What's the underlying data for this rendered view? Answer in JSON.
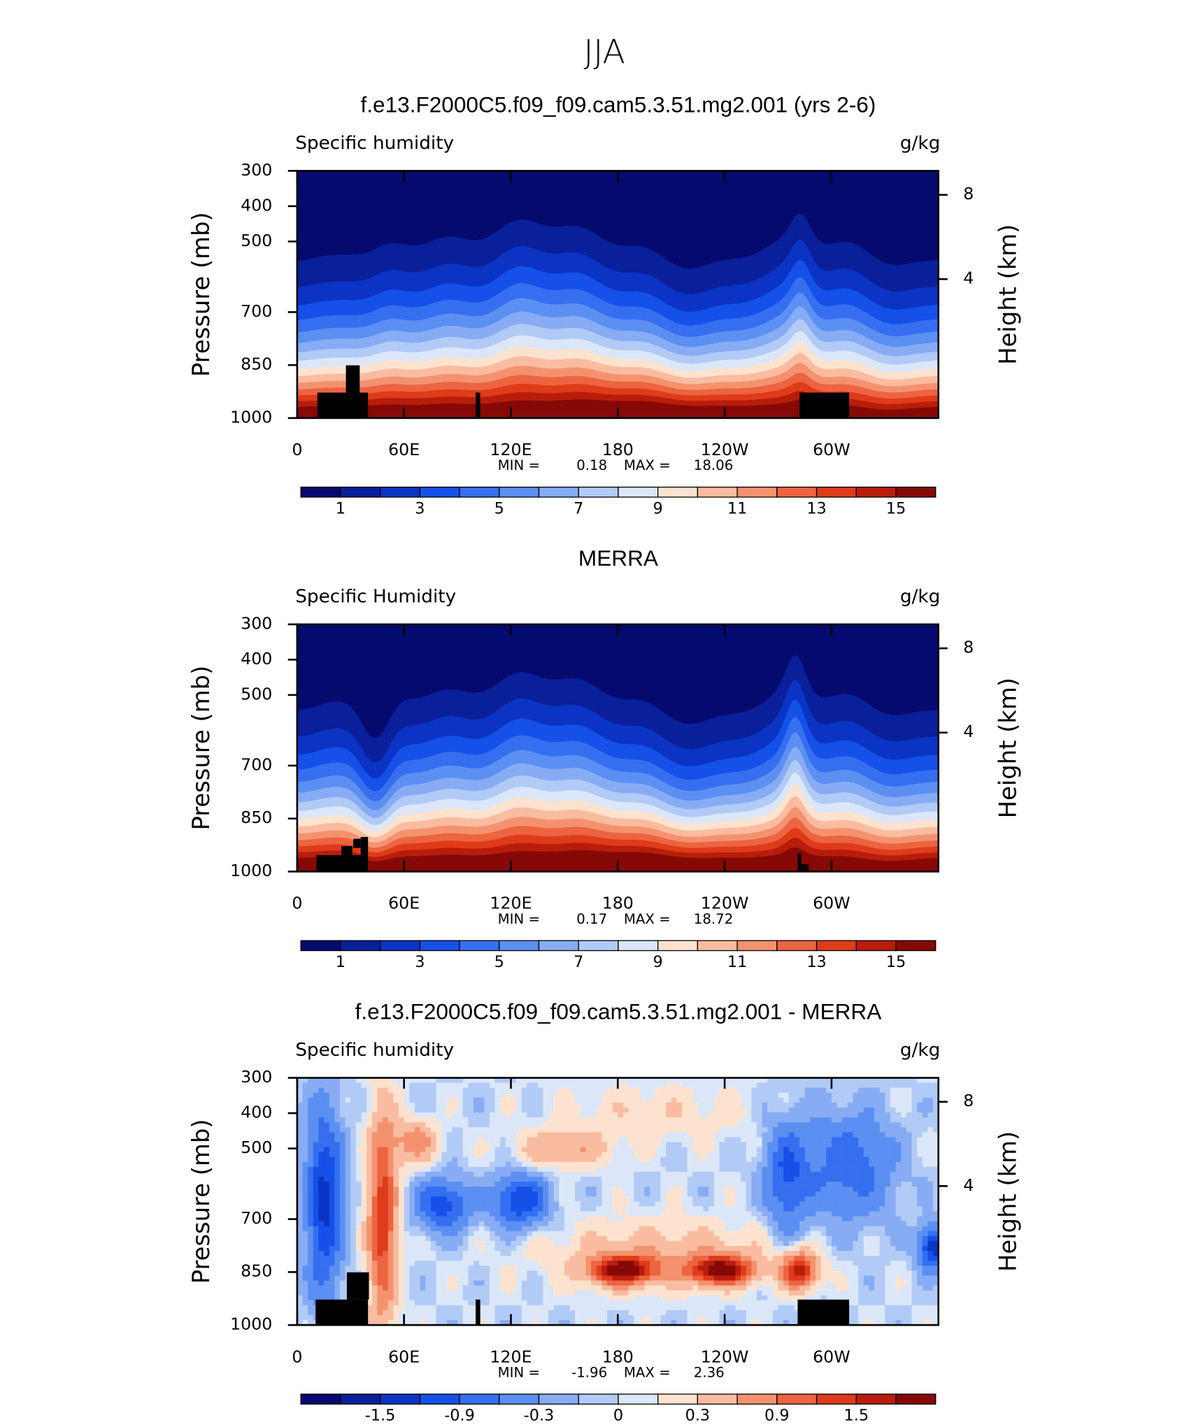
{
  "title": "JJA",
  "chart_data": [
    {
      "type": "contour",
      "panel": "model",
      "title": "f.e13.F2000C5.f09_f09.cam5.3.51.mg2.001 (yrs 2-6)",
      "subtitle": "Specific humidity",
      "units": "g/kg",
      "ylabel": "Pressure (mb)",
      "y2label": "Height (km)",
      "xlim": [
        0,
        360
      ],
      "xticks": [
        0,
        {
          "value": 60,
          "label": "60E"
        },
        {
          "value": 120,
          "label": "120E"
        },
        180,
        {
          "value": 240,
          "label": "120W"
        },
        {
          "value": 300,
          "label": "60W"
        }
      ],
      "ylim": [
        1000,
        300
      ],
      "yticks": [
        300,
        400,
        500,
        700,
        850,
        1000
      ],
      "y2ticks": [
        8,
        4
      ],
      "stats": [
        {
          "label": "MIN =",
          "value": 0.18
        },
        {
          "label": "MAX =",
          "value": 18.06
        }
      ],
      "colorbar": {
        "levels": [
          1,
          2,
          3,
          4,
          5,
          6,
          7,
          8,
          9,
          10,
          11,
          12,
          13,
          14,
          15
        ],
        "ticks": [
          1,
          3,
          5,
          7,
          9,
          11,
          13,
          15
        ],
        "colors": [
          "#050a6e",
          "#0a1f9a",
          "#0b34c4",
          "#1550e8",
          "#356ff0",
          "#5b8ff2",
          "#87acf4",
          "#b2caf6",
          "#dbe7f8",
          "#fde3cf",
          "#f9bca0",
          "#f4926f",
          "#ec6440",
          "#de3b1a",
          "#b81d0b",
          "#860905"
        ]
      }
    },
    {
      "type": "contour",
      "panel": "obs",
      "title": "MERRA",
      "subtitle": "Specific Humidity",
      "units": "g/kg",
      "ylabel": "Pressure (mb)",
      "y2label": "Height (km)",
      "xlim": [
        0,
        360
      ],
      "xticks": [
        0,
        {
          "value": 60,
          "label": "60E"
        },
        {
          "value": 120,
          "label": "120E"
        },
        180,
        {
          "value": 240,
          "label": "120W"
        },
        {
          "value": 300,
          "label": "60W"
        }
      ],
      "ylim": [
        1000,
        300
      ],
      "yticks": [
        300,
        400,
        500,
        700,
        850,
        1000
      ],
      "y2ticks": [
        8,
        4
      ],
      "stats": [
        {
          "label": "MIN =",
          "value": 0.17
        },
        {
          "label": "MAX =",
          "value": 18.72
        }
      ],
      "colorbar": {
        "levels": [
          1,
          2,
          3,
          4,
          5,
          6,
          7,
          8,
          9,
          10,
          11,
          12,
          13,
          14,
          15
        ],
        "ticks": [
          1,
          3,
          5,
          7,
          9,
          11,
          13,
          15
        ],
        "colors": [
          "#050a6e",
          "#0a1f9a",
          "#0b34c4",
          "#1550e8",
          "#356ff0",
          "#5b8ff2",
          "#87acf4",
          "#b2caf6",
          "#dbe7f8",
          "#fde3cf",
          "#f9bca0",
          "#f4926f",
          "#ec6440",
          "#de3b1a",
          "#b81d0b",
          "#860905"
        ]
      }
    },
    {
      "type": "contour",
      "panel": "diff",
      "title": "f.e13.F2000C5.f09_f09.cam5.3.51.mg2.001 - MERRA",
      "subtitle": "Specific humidity",
      "units": "g/kg",
      "ylabel": "Pressure (mb)",
      "y2label": "Height (km)",
      "xlim": [
        0,
        360
      ],
      "xticks": [
        0,
        {
          "value": 60,
          "label": "60E"
        },
        {
          "value": 120,
          "label": "120E"
        },
        180,
        {
          "value": 240,
          "label": "120W"
        },
        {
          "value": 300,
          "label": "60W"
        }
      ],
      "ylim": [
        1000,
        300
      ],
      "yticks": [
        300,
        400,
        500,
        700,
        850,
        1000
      ],
      "y2ticks": [
        8,
        4
      ],
      "stats": [
        {
          "label": "MIN =",
          "value": -1.96
        },
        {
          "label": "MAX =",
          "value": 2.36
        }
      ],
      "colorbar": {
        "levels": [
          -1.8,
          -1.5,
          -1.2,
          -0.9,
          -0.6,
          -0.3,
          -0.1,
          0,
          0.1,
          0.3,
          0.6,
          0.9,
          1.2,
          1.5,
          1.8
        ],
        "ticks": [
          -1.5,
          -0.9,
          -0.3,
          0,
          0.3,
          0.9,
          1.5
        ],
        "colors": [
          "#050a6e",
          "#0a1f9a",
          "#0b34c4",
          "#1550e8",
          "#356ff0",
          "#5b8ff2",
          "#87acf4",
          "#b2caf6",
          "#dbe7f8",
          "#fde3cf",
          "#f9bca0",
          "#f4926f",
          "#ec6440",
          "#de3b1a",
          "#b81d0b",
          "#860905"
        ]
      }
    }
  ]
}
